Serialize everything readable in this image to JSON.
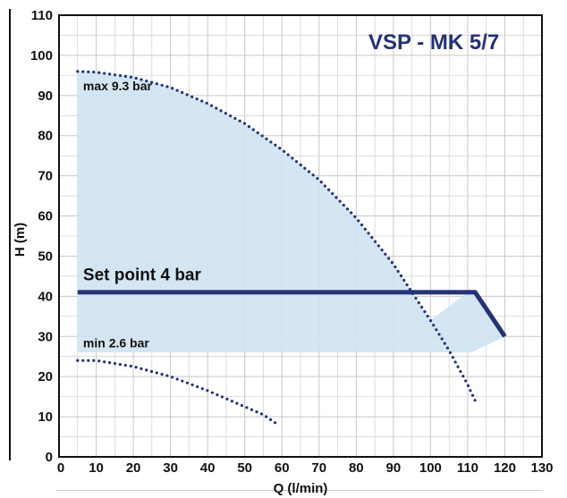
{
  "chart_data": {
    "type": "line",
    "title": "VSP - MK 5/7",
    "xlabel": "Q (l/min)",
    "ylabel": "H (m)",
    "xlim": [
      0,
      130
    ],
    "ylim": [
      0,
      110
    ],
    "xticks": [
      0,
      10,
      20,
      30,
      40,
      50,
      60,
      70,
      80,
      90,
      100,
      110,
      120,
      130
    ],
    "yticks": [
      0,
      10,
      20,
      30,
      40,
      50,
      60,
      70,
      80,
      90,
      100,
      110
    ],
    "grid": true,
    "annotations": [
      {
        "text": "max 9.3 bar",
        "x": 6,
        "y": 92
      },
      {
        "text": "Set point 4 bar",
        "x": 6,
        "y": 44
      },
      {
        "text": "min 2.6 bar",
        "x": 6,
        "y": 28
      }
    ],
    "series": [
      {
        "name": "max 9.3 bar",
        "style": "dotted",
        "x": [
          5,
          10,
          20,
          30,
          40,
          50,
          60,
          70,
          80,
          90,
          100,
          105,
          110,
          112
        ],
        "y": [
          96,
          95.8,
          94.5,
          92,
          88,
          83,
          76.5,
          69,
          59.5,
          48,
          34,
          26.5,
          18,
          14
        ]
      },
      {
        "name": "min 2.6 bar",
        "style": "dotted",
        "x": [
          5,
          10,
          20,
          30,
          40,
          50,
          55,
          59
        ],
        "y": [
          24,
          24,
          22.5,
          20,
          16.5,
          12.5,
          10.5,
          8
        ]
      },
      {
        "name": "Set point 4 bar",
        "style": "solid",
        "x": [
          5,
          112,
          120
        ],
        "y": [
          41,
          41,
          30
        ]
      }
    ],
    "shaded_region": {
      "upper_x": [
        5,
        10,
        20,
        30,
        40,
        50,
        60,
        70,
        80,
        90,
        100,
        110,
        112
      ],
      "upper_y": [
        96,
        95.8,
        94.5,
        92,
        88,
        83,
        76.5,
        69,
        59.5,
        48,
        34,
        41,
        41
      ],
      "lower_x": [
        120,
        111,
        5
      ],
      "lower_y": [
        30,
        26,
        26
      ]
    },
    "colors": {
      "fill": "#cfe3f1",
      "curve": "#23327a",
      "grid": "#c8c8c8",
      "axis": "#111111",
      "title": "#23327a"
    }
  }
}
